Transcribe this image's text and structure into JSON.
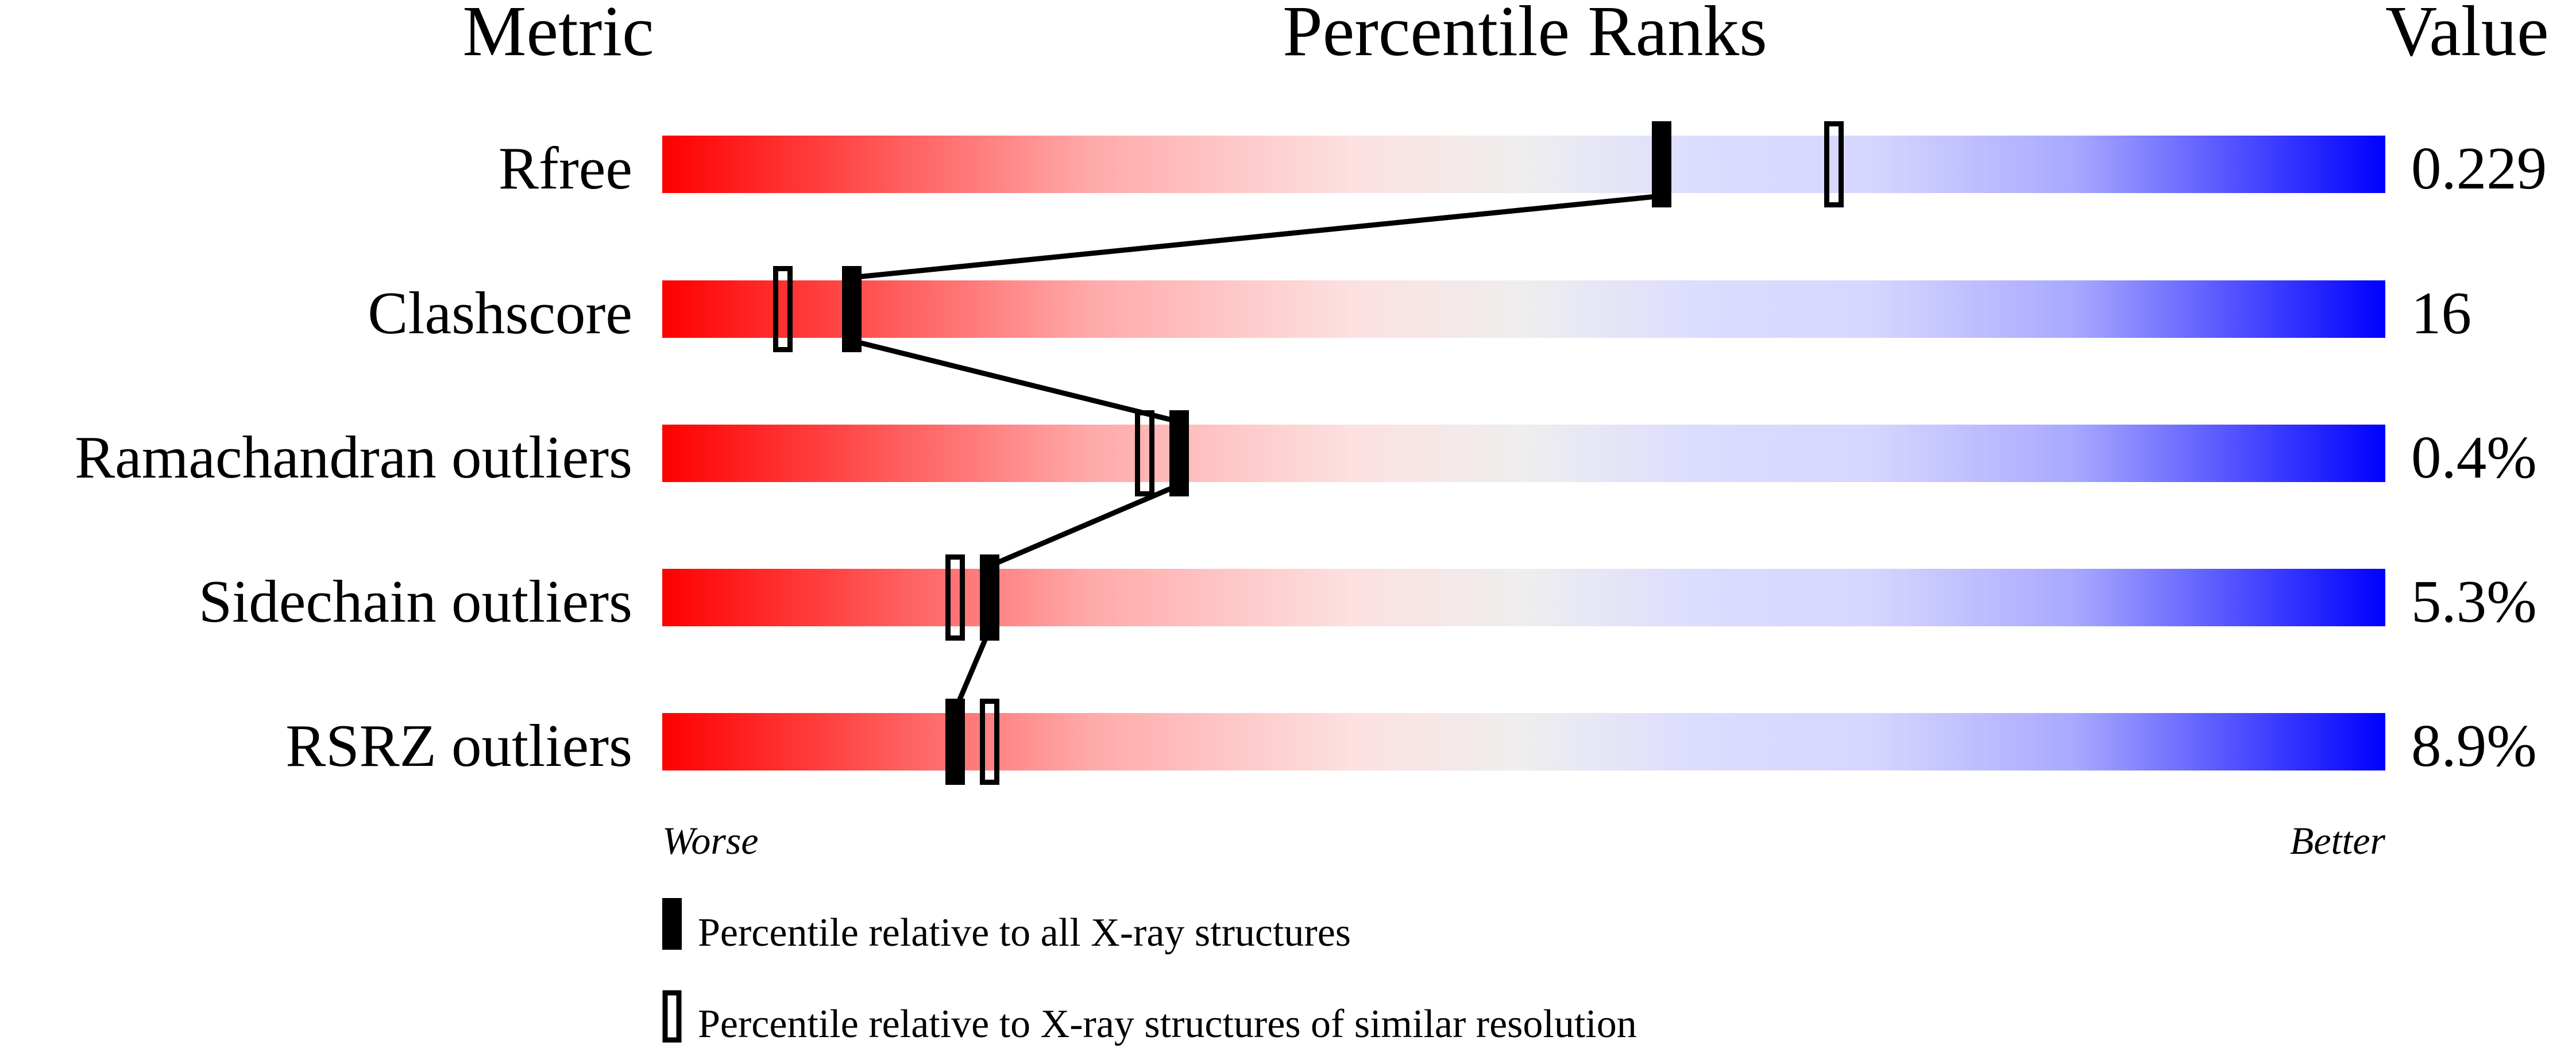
{
  "chart_data": {
    "type": "percentile-bar",
    "headers": {
      "metric": "Metric",
      "ranks": "Percentile Ranks",
      "value": "Value"
    },
    "xlim": [
      0,
      100
    ],
    "gradient_colors": [
      "#ff0000",
      "#eeeeee",
      "#dcdcff",
      "#0000ff"
    ],
    "metrics": [
      {
        "name": "Rfree",
        "value": "0.229",
        "percentile_all": 58,
        "percentile_similar": 68
      },
      {
        "name": "Clashscore",
        "value": "16",
        "percentile_all": 11,
        "percentile_similar": 7
      },
      {
        "name": "Ramachandran outliers",
        "value": "0.4%",
        "percentile_all": 30,
        "percentile_similar": 28
      },
      {
        "name": "Sidechain outliers",
        "value": "5.3%",
        "percentile_all": 19,
        "percentile_similar": 17
      },
      {
        "name": "RSRZ outliers",
        "value": "8.9%",
        "percentile_all": 17,
        "percentile_similar": 19
      }
    ],
    "axis_labels": {
      "left": "Worse",
      "right": "Better"
    },
    "legend": [
      {
        "marker": "filled",
        "label": "Percentile relative to all X-ray structures"
      },
      {
        "marker": "open",
        "label": "Percentile relative to X-ray structures of similar resolution"
      }
    ]
  }
}
